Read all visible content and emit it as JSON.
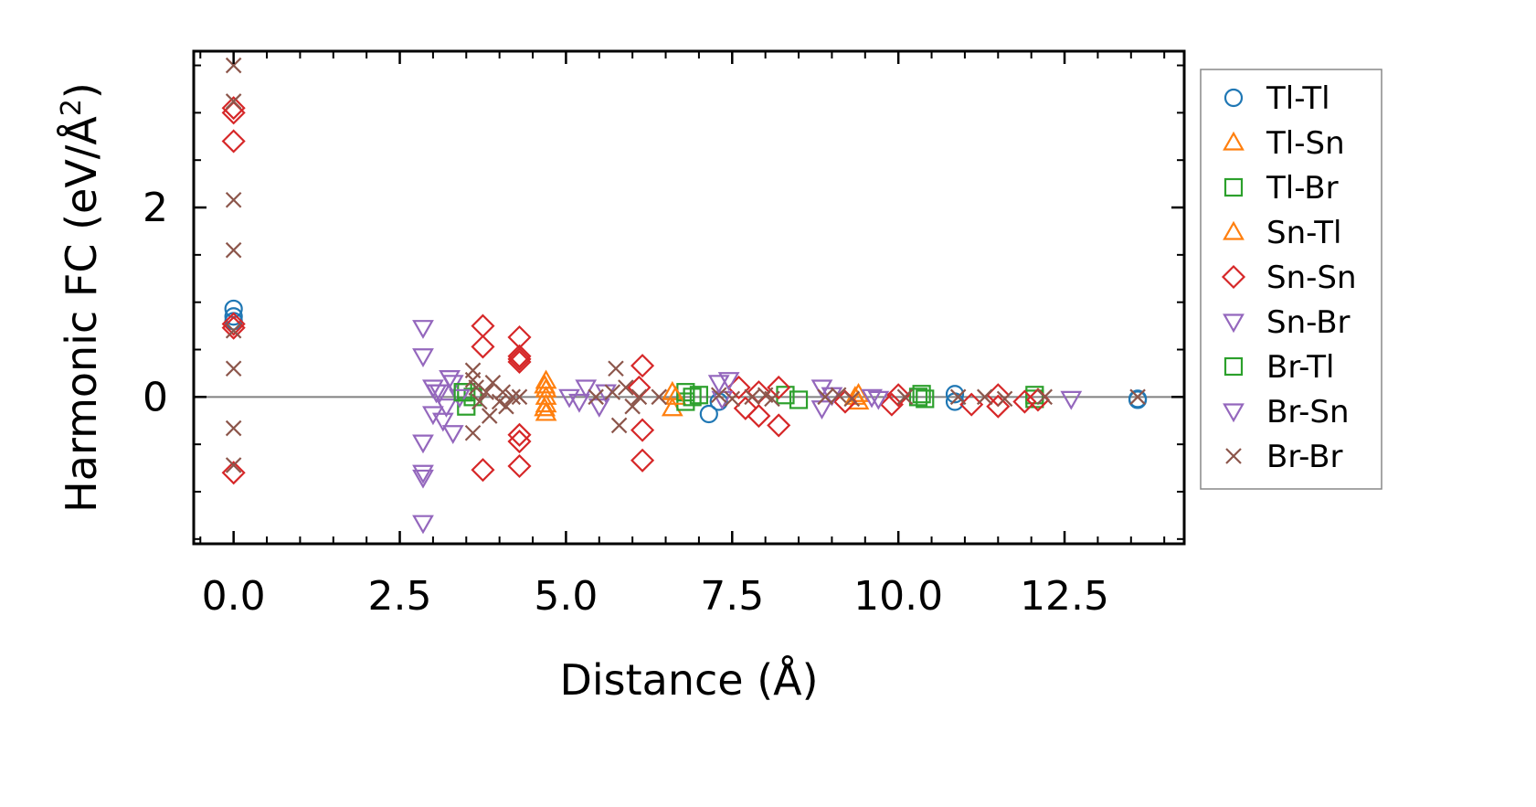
{
  "chart_data": {
    "type": "scatter",
    "title": "",
    "xlabel": "Distance (Å)",
    "ylabel_main": "Harmonic FC (eV/Å",
    "ylabel_sup": "2",
    "ylabel_close": ")",
    "xlim": [
      -0.6,
      14.3
    ],
    "ylim": [
      -1.55,
      3.65
    ],
    "xticks": [
      0.0,
      2.5,
      5.0,
      7.5,
      10.0,
      12.5
    ],
    "xtick_labels": [
      "0.0",
      "2.5",
      "5.0",
      "7.5",
      "10.0",
      "12.5"
    ],
    "yticks": [
      0,
      2
    ],
    "ytick_labels": [
      "0",
      "2"
    ],
    "hline": 0,
    "legend_position": "right-outside",
    "series": [
      {
        "name": "Tl-Tl",
        "marker": "circle",
        "color": "#1f77b4",
        "points": [
          [
            0,
            0.93
          ],
          [
            0,
            0.85
          ],
          [
            0,
            0.8
          ],
          [
            7.15,
            -0.18
          ],
          [
            7.3,
            -0.05
          ],
          [
            10.85,
            0.03
          ],
          [
            10.85,
            -0.05
          ],
          [
            13.6,
            -0.02
          ],
          [
            13.6,
            -0.03
          ]
        ]
      },
      {
        "name": "Tl-Sn",
        "marker": "triangle-up",
        "color": "#ff7f0e",
        "points": [
          [
            4.7,
            0.17
          ],
          [
            4.7,
            0.08
          ],
          [
            4.7,
            0.0
          ],
          [
            4.7,
            -0.08
          ],
          [
            4.7,
            -0.17
          ],
          [
            6.6,
            -0.12
          ],
          [
            6.6,
            0.05
          ],
          [
            9.4,
            -0.05
          ],
          [
            9.4,
            0.03
          ]
        ]
      },
      {
        "name": "Tl-Br",
        "marker": "square",
        "color": "#2ca02c",
        "points": [
          [
            3.5,
            -0.1
          ],
          [
            3.5,
            0.05
          ],
          [
            3.6,
            0.0
          ],
          [
            6.8,
            0.05
          ],
          [
            6.8,
            -0.05
          ],
          [
            7.0,
            0.02
          ],
          [
            8.3,
            0.02
          ],
          [
            8.5,
            -0.03
          ],
          [
            10.3,
            0.0
          ],
          [
            10.4,
            -0.02
          ],
          [
            12.05,
            0.02
          ],
          [
            12.05,
            -0.02
          ]
        ]
      },
      {
        "name": "Sn-Tl",
        "marker": "triangle-up",
        "color": "#ff7f0e",
        "points": [
          [
            4.68,
            0.12
          ],
          [
            4.68,
            -0.12
          ],
          [
            6.65,
            0.0
          ],
          [
            9.35,
            0.0
          ]
        ]
      },
      {
        "name": "Sn-Sn",
        "marker": "diamond",
        "color": "#d62728",
        "points": [
          [
            0,
            3.05
          ],
          [
            0,
            3.0
          ],
          [
            0,
            2.7
          ],
          [
            0,
            0.77
          ],
          [
            0,
            0.73
          ],
          [
            0,
            -0.8
          ],
          [
            3.75,
            0.75
          ],
          [
            3.75,
            0.53
          ],
          [
            3.75,
            -0.77
          ],
          [
            4.3,
            0.63
          ],
          [
            4.3,
            0.43
          ],
          [
            4.3,
            0.4
          ],
          [
            4.3,
            0.37
          ],
          [
            4.3,
            -0.4
          ],
          [
            4.3,
            -0.47
          ],
          [
            4.3,
            -0.73
          ],
          [
            6.15,
            0.33
          ],
          [
            6.15,
            -0.35
          ],
          [
            6.15,
            -0.67
          ],
          [
            6.1,
            0.1
          ],
          [
            7.6,
            0.1
          ],
          [
            7.7,
            -0.12
          ],
          [
            7.9,
            0.05
          ],
          [
            7.9,
            -0.2
          ],
          [
            8.2,
            0.1
          ],
          [
            8.2,
            -0.3
          ],
          [
            9.2,
            -0.05
          ],
          [
            9.9,
            -0.08
          ],
          [
            10.0,
            0.02
          ],
          [
            11.1,
            -0.08
          ],
          [
            11.5,
            0.02
          ],
          [
            11.5,
            -0.1
          ],
          [
            11.9,
            -0.05
          ],
          [
            12.1,
            -0.03
          ]
        ]
      },
      {
        "name": "Sn-Br",
        "marker": "triangle-down",
        "color": "#9467bd",
        "points": [
          [
            2.85,
            0.73
          ],
          [
            2.85,
            0.43
          ],
          [
            2.85,
            -0.48
          ],
          [
            2.85,
            -0.8
          ],
          [
            2.85,
            -0.85
          ],
          [
            2.85,
            -1.33
          ],
          [
            3.0,
            0.1
          ],
          [
            3.0,
            -0.18
          ],
          [
            3.1,
            0.05
          ],
          [
            3.2,
            -0.1
          ],
          [
            3.3,
            0.15
          ],
          [
            3.3,
            -0.38
          ],
          [
            3.4,
            0.0
          ],
          [
            5.05,
            0.0
          ],
          [
            5.3,
            0.1
          ],
          [
            5.5,
            -0.1
          ],
          [
            7.3,
            0.15
          ],
          [
            7.45,
            0.18
          ],
          [
            8.85,
            0.1
          ],
          [
            8.85,
            -0.12
          ],
          [
            9.6,
            0.0
          ],
          [
            12.6,
            -0.02
          ]
        ]
      },
      {
        "name": "Br-Tl",
        "marker": "square",
        "color": "#2ca02c",
        "points": [
          [
            3.45,
            0.05
          ],
          [
            6.9,
            0.0
          ],
          [
            10.35,
            0.03
          ]
        ]
      },
      {
        "name": "Br-Sn",
        "marker": "triangle-down",
        "color": "#9467bd",
        "points": [
          [
            3.05,
            0.05
          ],
          [
            3.15,
            -0.25
          ],
          [
            3.25,
            0.2
          ],
          [
            5.2,
            -0.05
          ],
          [
            5.6,
            0.05
          ],
          [
            7.35,
            -0.02
          ],
          [
            9.0,
            0.02
          ],
          [
            9.7,
            -0.02
          ]
        ]
      },
      {
        "name": "Br-Br",
        "marker": "cross",
        "color": "#8c564b",
        "points": [
          [
            0,
            3.5
          ],
          [
            0,
            3.12
          ],
          [
            0,
            2.08
          ],
          [
            0,
            1.55
          ],
          [
            0,
            0.7
          ],
          [
            0,
            0.3
          ],
          [
            0,
            -0.33
          ],
          [
            0,
            -0.72
          ],
          [
            3.6,
            0.28
          ],
          [
            3.6,
            0.18
          ],
          [
            3.6,
            -0.38
          ],
          [
            3.65,
            0.1
          ],
          [
            3.7,
            -0.05
          ],
          [
            3.8,
            0.05
          ],
          [
            3.85,
            -0.2
          ],
          [
            3.9,
            0.15
          ],
          [
            4.0,
            -0.05
          ],
          [
            4.05,
            0.05
          ],
          [
            4.1,
            -0.1
          ],
          [
            4.2,
            0.0
          ],
          [
            4.3,
            0.0
          ],
          [
            5.45,
            0.0
          ],
          [
            5.7,
            0.05
          ],
          [
            5.75,
            0.3
          ],
          [
            5.8,
            -0.3
          ],
          [
            5.9,
            0.1
          ],
          [
            6.0,
            -0.1
          ],
          [
            6.1,
            0.0
          ],
          [
            6.4,
            0.0
          ],
          [
            7.3,
            0.02
          ],
          [
            7.5,
            -0.02
          ],
          [
            7.8,
            0.0
          ],
          [
            8.0,
            0.02
          ],
          [
            8.1,
            -0.02
          ],
          [
            8.9,
            0.0
          ],
          [
            9.1,
            0.02
          ],
          [
            9.3,
            -0.02
          ],
          [
            10.1,
            0.0
          ],
          [
            10.9,
            0.0
          ],
          [
            11.3,
            0.0
          ],
          [
            11.6,
            -0.02
          ],
          [
            12.2,
            0.0
          ],
          [
            13.6,
            0.0
          ]
        ]
      }
    ]
  }
}
